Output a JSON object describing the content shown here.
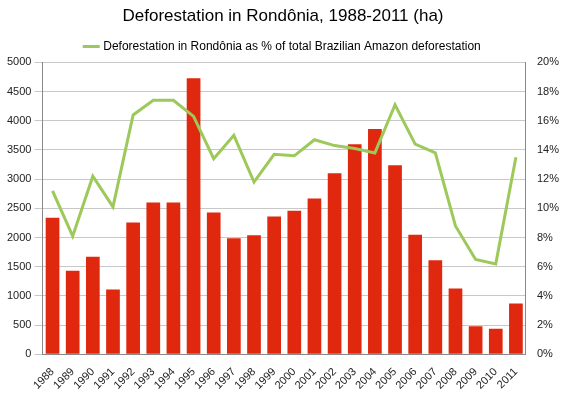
{
  "chart_data": {
    "type": "bar",
    "title": "Deforestation in Rondônia, 1988-2011 (ha)",
    "categories": [
      "1988",
      "1989",
      "1990",
      "1991",
      "1992",
      "1993",
      "1994",
      "1995",
      "1996",
      "1997",
      "1998",
      "1999",
      "2000",
      "2001",
      "2002",
      "2003",
      "2004",
      "2005",
      "2006",
      "2007",
      "2008",
      "2009",
      "2010",
      "2011"
    ],
    "series": [
      {
        "type": "bar",
        "color": "#e0280f",
        "values": [
          2340,
          1430,
          1670,
          1110,
          2260,
          2600,
          2600,
          4730,
          2430,
          1990,
          2040,
          2360,
          2460,
          2670,
          3100,
          3600,
          3860,
          3240,
          2050,
          1610,
          1130,
          480,
          440,
          870
        ]
      },
      {
        "name": "Deforestation in Rondônia as % of total Brazilian Amazon deforestation",
        "type": "line",
        "color": "#9cc95a",
        "axis": "y2",
        "values": [
          11.2,
          8.1,
          12.2,
          10.1,
          16.4,
          17.4,
          17.4,
          16.3,
          13.4,
          15.0,
          11.8,
          13.7,
          13.6,
          14.7,
          14.3,
          14.1,
          13.8,
          17.1,
          14.4,
          13.8,
          8.8,
          6.5,
          6.2,
          13.5
        ]
      }
    ],
    "ylim": [
      0,
      5000
    ],
    "yticks": [
      0,
      500,
      1000,
      1500,
      2000,
      2500,
      3000,
      3500,
      4000,
      4500,
      5000
    ],
    "y2lim": [
      0,
      20
    ],
    "y2ticks": [
      {
        "value": 0,
        "label": "0%"
      },
      {
        "value": 2,
        "label": "2%"
      },
      {
        "value": 4,
        "label": "4%"
      },
      {
        "value": 6,
        "label": "6%"
      },
      {
        "value": 8,
        "label": "8%"
      },
      {
        "value": 10,
        "label": "10%"
      },
      {
        "value": 12,
        "label": "12%"
      },
      {
        "value": 14,
        "label": "14%"
      },
      {
        "value": 16,
        "label": "16%"
      },
      {
        "value": 18,
        "label": "18%"
      },
      {
        "value": 20,
        "label": "20%"
      }
    ],
    "grid": true,
    "legend": "top"
  }
}
